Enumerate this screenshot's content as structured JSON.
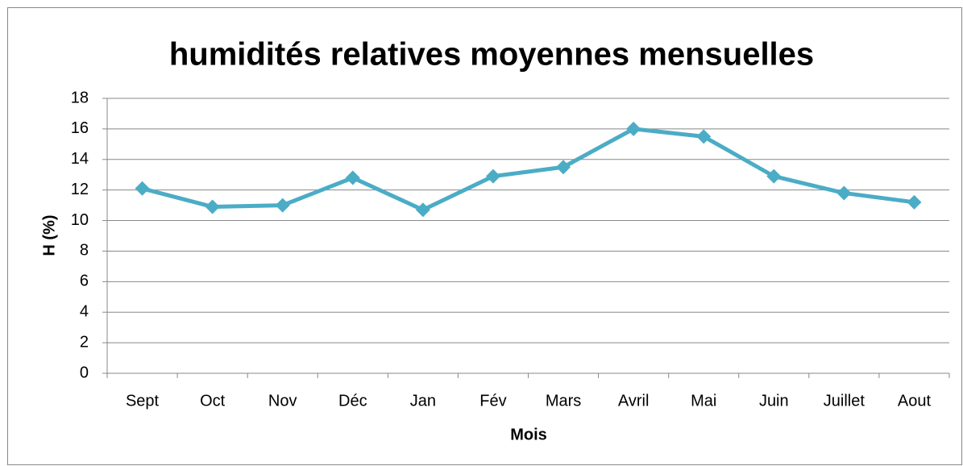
{
  "chart_data": {
    "type": "line",
    "title": "humidités relatives moyennes mensuelles",
    "x_label": "Mois",
    "y_label": "H (%)",
    "categories": [
      "Sept",
      "Oct",
      "Nov",
      "Déc",
      "Jan",
      "Fév",
      "Mars",
      "Avril",
      "Mai",
      "Juin",
      "Juillet",
      "Aout"
    ],
    "values": [
      12.1,
      10.9,
      11.0,
      12.8,
      10.7,
      12.9,
      13.5,
      16.0,
      15.5,
      12.9,
      11.8,
      11.2
    ],
    "color": "#4bacc6",
    "ylim": [
      0,
      18
    ],
    "yticks": [
      0,
      2,
      4,
      6,
      8,
      10,
      12,
      14,
      16,
      18
    ],
    "grid": true
  }
}
